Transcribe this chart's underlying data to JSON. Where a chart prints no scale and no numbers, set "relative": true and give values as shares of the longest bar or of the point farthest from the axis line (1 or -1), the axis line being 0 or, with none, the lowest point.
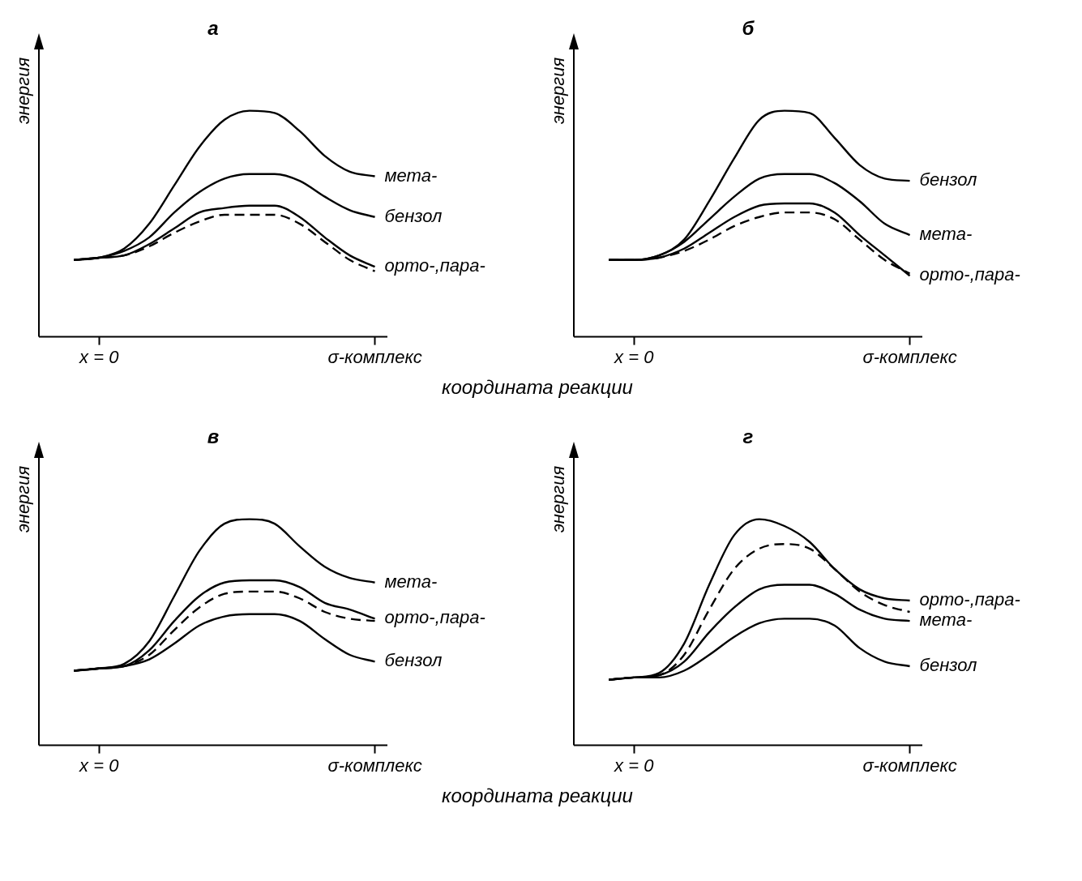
{
  "chart_data": [
    {
      "type": "line",
      "title": "а",
      "ylabel": "энергия",
      "xlabel": "координата реакции",
      "relative": true,
      "legend": false,
      "grid": false,
      "marker": "none",
      "categories": [
        null,
        "x = 0",
        null,
        null,
        null,
        null,
        null,
        null,
        null,
        null,
        null,
        null,
        "σ-комплекс"
      ],
      "series": [
        {
          "name": "мета-",
          "color": "#000000",
          "values": [
            0.34,
            0.35,
            0.39,
            0.5,
            0.67,
            0.84,
            0.96,
            1.0,
            0.99,
            0.91,
            0.8,
            0.73,
            0.71
          ]
        },
        {
          "name": "бензол",
          "color": "#000000",
          "values": [
            0.34,
            0.35,
            0.38,
            0.44,
            0.55,
            0.64,
            0.7,
            0.72,
            0.72,
            0.69,
            0.62,
            0.56,
            0.53
          ]
        },
        {
          "name": "орто-,пара-",
          "color": "#000000",
          "values": [
            0.34,
            0.35,
            0.36,
            0.41,
            0.48,
            0.55,
            0.57,
            0.58,
            0.58,
            0.53,
            0.44,
            0.36,
            0.31
          ]
        },
        {
          "color": "#000000",
          "line_style": "dashed",
          "values": [
            0.34,
            0.35,
            0.36,
            0.4,
            0.46,
            0.51,
            0.54,
            0.54,
            0.54,
            0.5,
            0.42,
            0.34,
            0.29
          ]
        }
      ]
    },
    {
      "type": "line",
      "title": "б",
      "ylabel": "энергия",
      "relative": true,
      "legend": false,
      "grid": false,
      "marker": "none",
      "categories": [
        null,
        "x = 0",
        null,
        null,
        null,
        null,
        null,
        null,
        null,
        null,
        null,
        null,
        "σ-комплекс"
      ],
      "series": [
        {
          "name": "бензол",
          "color": "#000000",
          "values": [
            0.34,
            0.34,
            0.36,
            0.43,
            0.6,
            0.79,
            0.96,
            1.0,
            0.99,
            0.88,
            0.76,
            0.7,
            0.69
          ]
        },
        {
          "name": "мета-",
          "color": "#000000",
          "values": [
            0.34,
            0.34,
            0.36,
            0.42,
            0.52,
            0.62,
            0.7,
            0.72,
            0.72,
            0.68,
            0.6,
            0.5,
            0.45
          ]
        },
        {
          "name": "орто-,пара-",
          "color": "#000000",
          "values": [
            0.34,
            0.34,
            0.35,
            0.39,
            0.46,
            0.53,
            0.58,
            0.59,
            0.59,
            0.55,
            0.45,
            0.36,
            0.27
          ]
        },
        {
          "color": "#000000",
          "line_style": "dashed",
          "values": [
            0.34,
            0.34,
            0.35,
            0.38,
            0.43,
            0.49,
            0.53,
            0.55,
            0.55,
            0.52,
            0.43,
            0.34,
            0.28
          ]
        }
      ]
    },
    {
      "type": "line",
      "title": "в",
      "ylabel": "энергия",
      "xlabel": "координата реакции",
      "relative": true,
      "legend": false,
      "grid": false,
      "marker": "none",
      "categories": [
        null,
        "x = 0",
        null,
        null,
        null,
        null,
        null,
        null,
        null,
        null,
        null,
        null,
        "σ-комплекс"
      ],
      "series": [
        {
          "name": "мета-",
          "color": "#000000",
          "values": [
            0.33,
            0.34,
            0.36,
            0.46,
            0.66,
            0.86,
            0.98,
            1.0,
            0.98,
            0.88,
            0.79,
            0.74,
            0.72
          ]
        },
        {
          "name": "орто-,пара-",
          "color": "#000000",
          "values": [
            0.33,
            0.34,
            0.35,
            0.42,
            0.55,
            0.66,
            0.72,
            0.73,
            0.73,
            0.7,
            0.63,
            0.6,
            0.56
          ]
        },
        {
          "color": "#000000",
          "line_style": "dashed",
          "values": [
            0.33,
            0.34,
            0.35,
            0.4,
            0.51,
            0.61,
            0.67,
            0.68,
            0.68,
            0.65,
            0.59,
            0.56,
            0.55
          ]
        },
        {
          "name": "бензол",
          "color": "#000000",
          "values": [
            0.33,
            0.34,
            0.35,
            0.38,
            0.45,
            0.53,
            0.57,
            0.58,
            0.58,
            0.55,
            0.47,
            0.4,
            0.37
          ]
        }
      ]
    },
    {
      "type": "line",
      "title": "г",
      "ylabel": "энергия",
      "relative": true,
      "legend": false,
      "grid": false,
      "marker": "none",
      "categories": [
        null,
        "x = 0",
        null,
        null,
        null,
        null,
        null,
        null,
        null,
        null,
        null,
        null,
        "σ-комплекс"
      ],
      "series": [
        {
          "name": "орто-,пара-",
          "color": "#000000",
          "values": [
            0.29,
            0.3,
            0.32,
            0.45,
            0.71,
            0.93,
            1.0,
            0.97,
            0.9,
            0.78,
            0.69,
            0.65,
            0.64
          ]
        },
        {
          "color": "#000000",
          "line_style": "dashed",
          "values": [
            0.29,
            0.3,
            0.31,
            0.4,
            0.6,
            0.78,
            0.87,
            0.89,
            0.87,
            0.78,
            0.68,
            0.62,
            0.59
          ]
        },
        {
          "name": "мета-",
          "color": "#000000",
          "values": [
            0.29,
            0.3,
            0.31,
            0.37,
            0.5,
            0.61,
            0.69,
            0.71,
            0.71,
            0.67,
            0.6,
            0.56,
            0.55
          ]
        },
        {
          "name": "бензол",
          "color": "#000000",
          "values": [
            0.29,
            0.3,
            0.3,
            0.33,
            0.4,
            0.48,
            0.54,
            0.56,
            0.56,
            0.53,
            0.43,
            0.37,
            0.35
          ]
        }
      ]
    }
  ]
}
